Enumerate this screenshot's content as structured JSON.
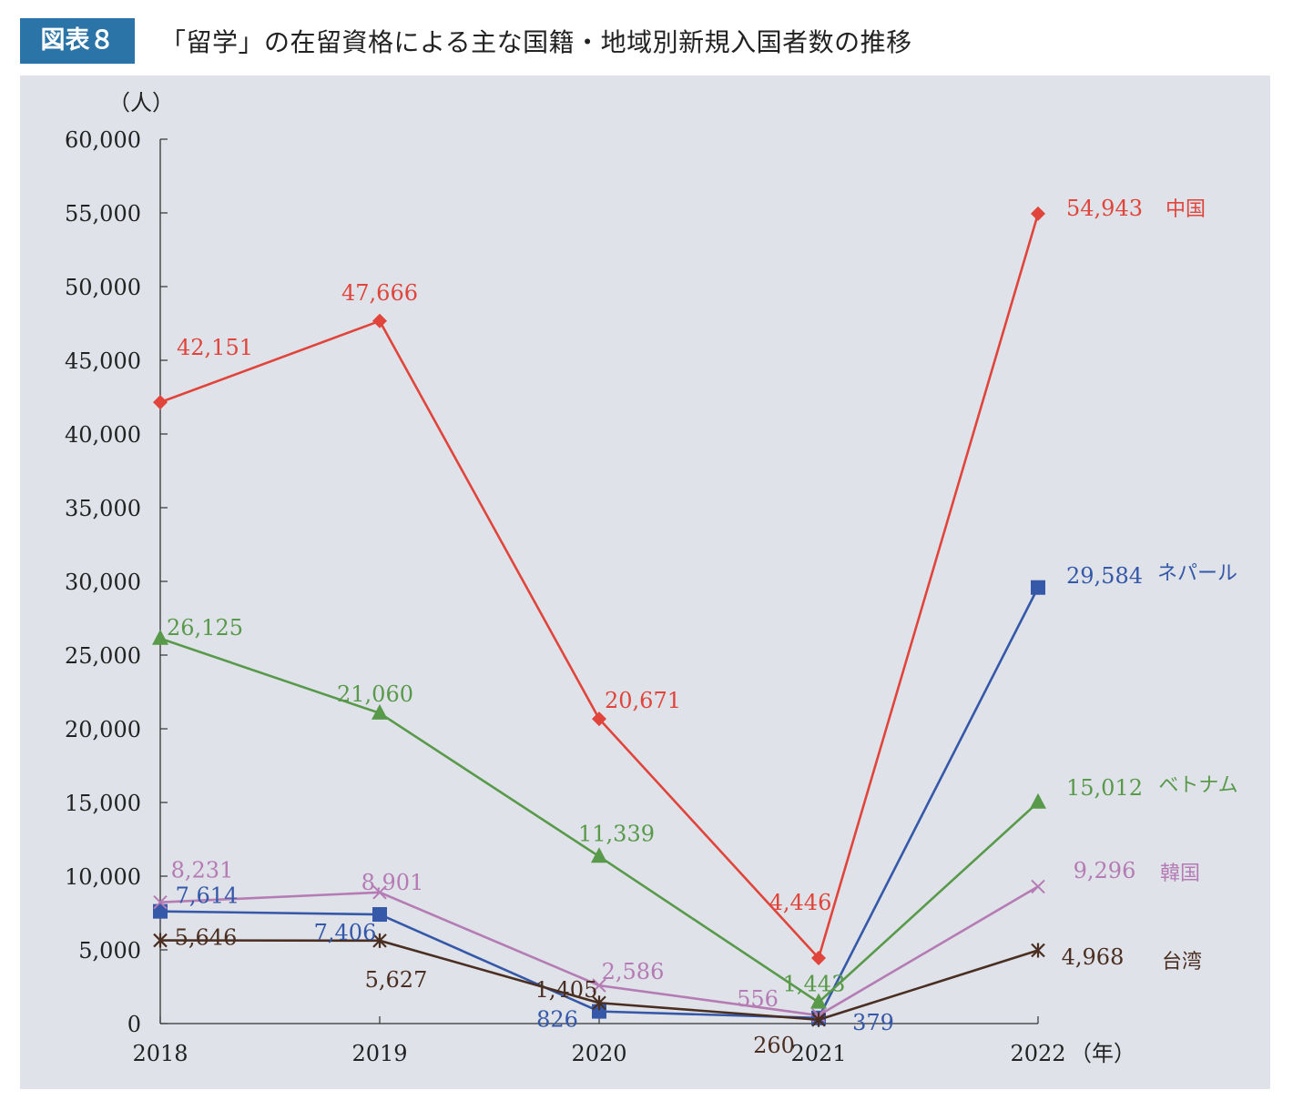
{
  "figure": {
    "badge": "図表８",
    "title": "「留学」の在留資格による主な国籍・地域別新規入国者数の推移"
  },
  "chart_data": {
    "type": "line",
    "unit_label": "（人）",
    "x_unit_label": "（年）",
    "categories": [
      "2018",
      "2019",
      "2020",
      "2021",
      "2022"
    ],
    "ylim": [
      0,
      60000
    ],
    "y_ticks": [
      0,
      5000,
      10000,
      15000,
      20000,
      25000,
      30000,
      35000,
      40000,
      45000,
      50000,
      55000,
      60000
    ],
    "y_tick_labels": [
      "0",
      "5,000",
      "10,000",
      "15,000",
      "20,000",
      "25,000",
      "30,000",
      "35,000",
      "40,000",
      "45,000",
      "50,000",
      "55,000",
      "60,000"
    ],
    "grid": false,
    "legend": "end-labels",
    "series": [
      {
        "key": "china",
        "name": "中国",
        "color": "#e0443b",
        "marker": "diamond",
        "values": [
          42151,
          47666,
          20671,
          4446,
          54943
        ],
        "labels": [
          "42,151",
          "47,666",
          "20,671",
          "4,446",
          "54,943"
        ]
      },
      {
        "key": "nepal",
        "name": "ネパール",
        "color": "#3558a8",
        "marker": "square",
        "values": [
          7614,
          7406,
          826,
          379,
          29584
        ],
        "labels": [
          "7,614",
          "7,406",
          "826",
          "379",
          "29,584"
        ]
      },
      {
        "key": "vietnam",
        "name": "ベトナム",
        "color": "#58994a",
        "marker": "triangle",
        "values": [
          26125,
          21060,
          11339,
          1443,
          15012
        ],
        "labels": [
          "26,125",
          "21,060",
          "11,339",
          "1,443",
          "15,012"
        ]
      },
      {
        "key": "korea",
        "name": "韓国",
        "color": "#b57bb4",
        "marker": "x",
        "values": [
          8231,
          8901,
          2586,
          556,
          9296
        ],
        "labels": [
          "8,231",
          "8,901",
          "2,586",
          "556",
          "9,296"
        ]
      },
      {
        "key": "taiwan",
        "name": "台湾",
        "color": "#4a2e22",
        "marker": "star",
        "values": [
          5646,
          5627,
          1405,
          260,
          4968
        ],
        "labels": [
          "5,646",
          "5,627",
          "1,405",
          "260",
          "4,968"
        ]
      }
    ]
  }
}
